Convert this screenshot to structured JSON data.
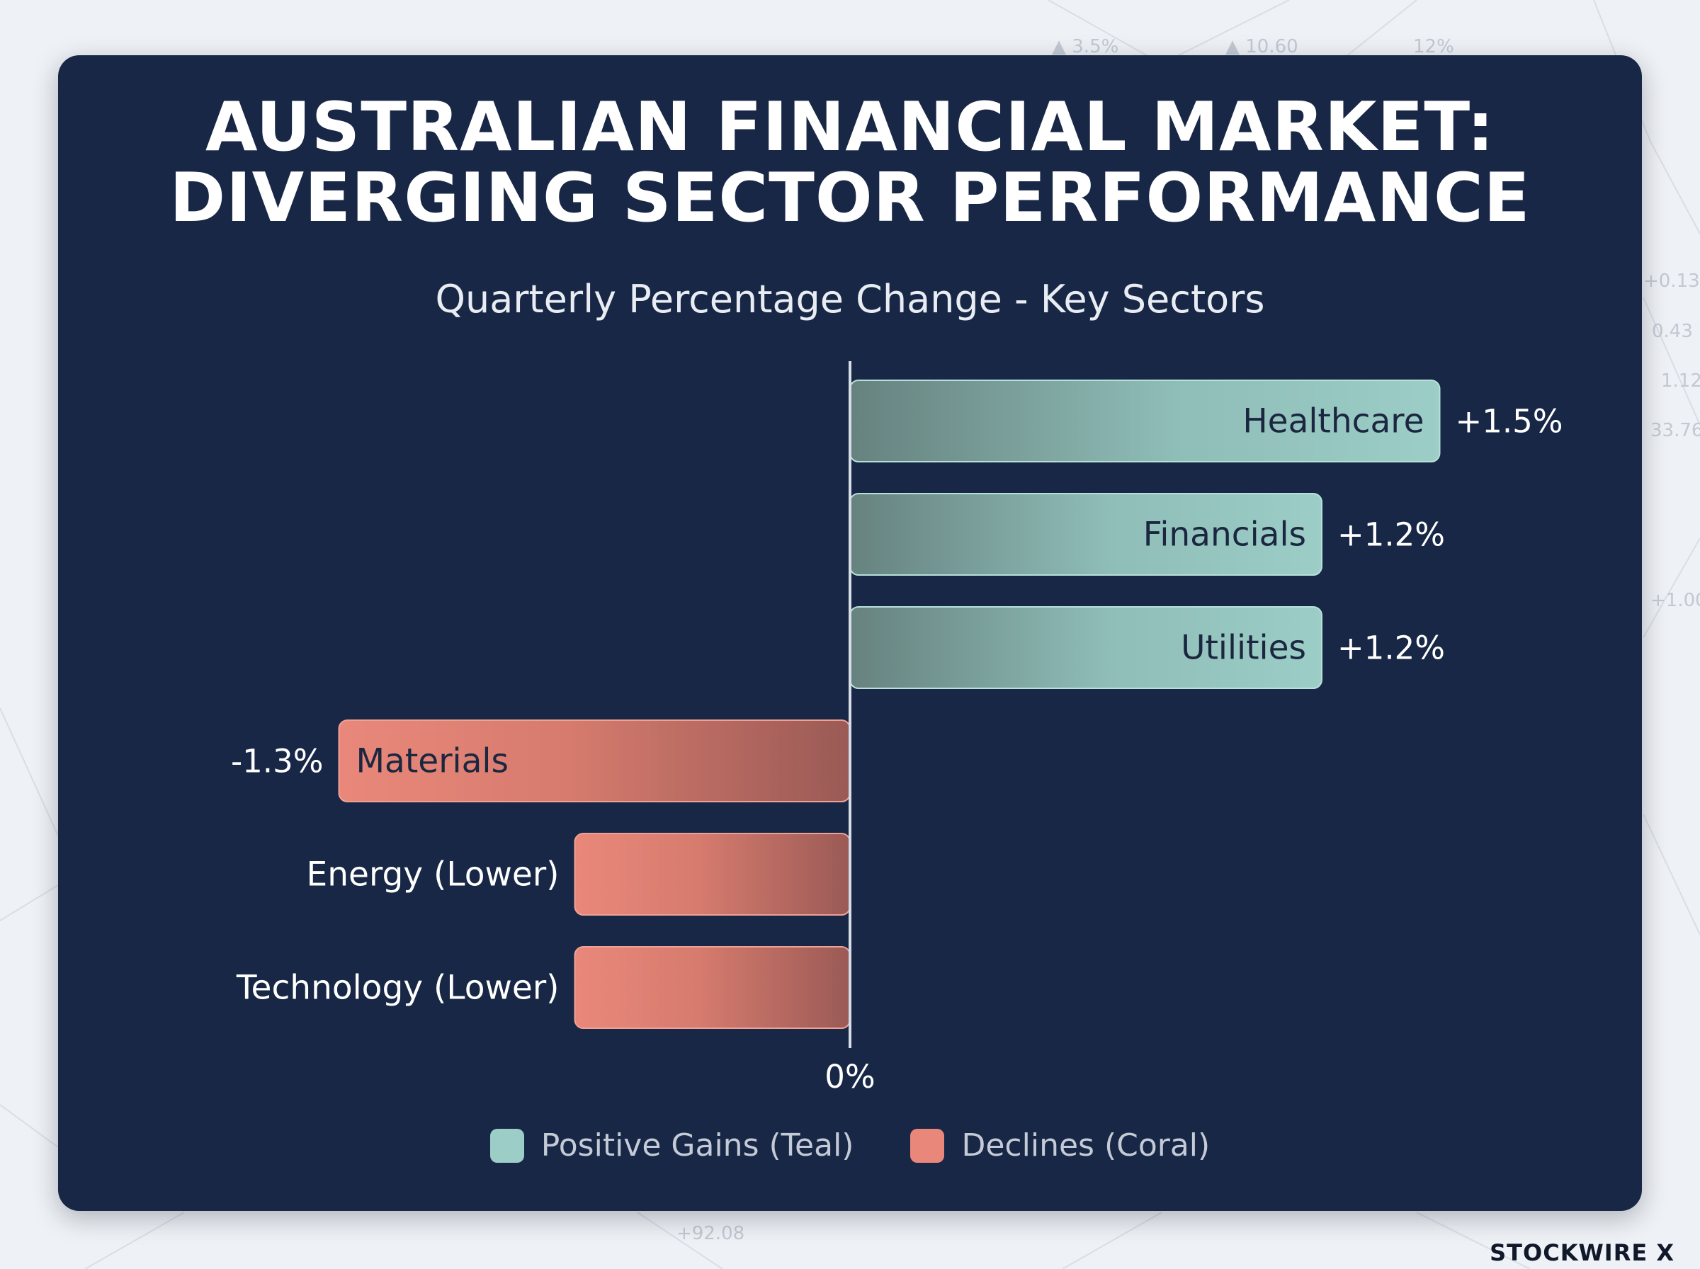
{
  "chart_data": {
    "type": "bar",
    "orientation": "horizontal",
    "title_lines": [
      "AUSTRALIAN FINANCIAL MARKET:",
      "DIVERGING SECTOR PERFORMANCE"
    ],
    "subtitle": "Quarterly Percentage Change - Key Sectors",
    "categories": [
      "Healthcare",
      "Financials",
      "Utilities",
      "Materials",
      "Energy (Lower)",
      "Technology (Lower)"
    ],
    "values": [
      1.5,
      1.2,
      1.2,
      -1.3,
      -0.7,
      -0.7
    ],
    "value_labels": [
      "+1.5%",
      "+1.2%",
      "+1.2%",
      "-1.3%",
      "",
      ""
    ],
    "zero_label": "0%",
    "legend_position": "bottom-center",
    "legend": [
      {
        "label": "Positive Gains (Teal)",
        "color": "#9ccdc7"
      },
      {
        "label": "Declines (Coral)",
        "color": "#e9887a"
      }
    ],
    "colors": {
      "positive": "#9ccdc7",
      "negative": "#e9887a",
      "card": "#172745"
    }
  },
  "background_numbers": [
    "▲ 3.5%",
    "▲ 10.60",
    "12%",
    "+0.13",
    "0.43",
    "1.12",
    "33.76",
    "+1.00",
    "+92.08"
  ],
  "brand": "STOCKWIRE X"
}
